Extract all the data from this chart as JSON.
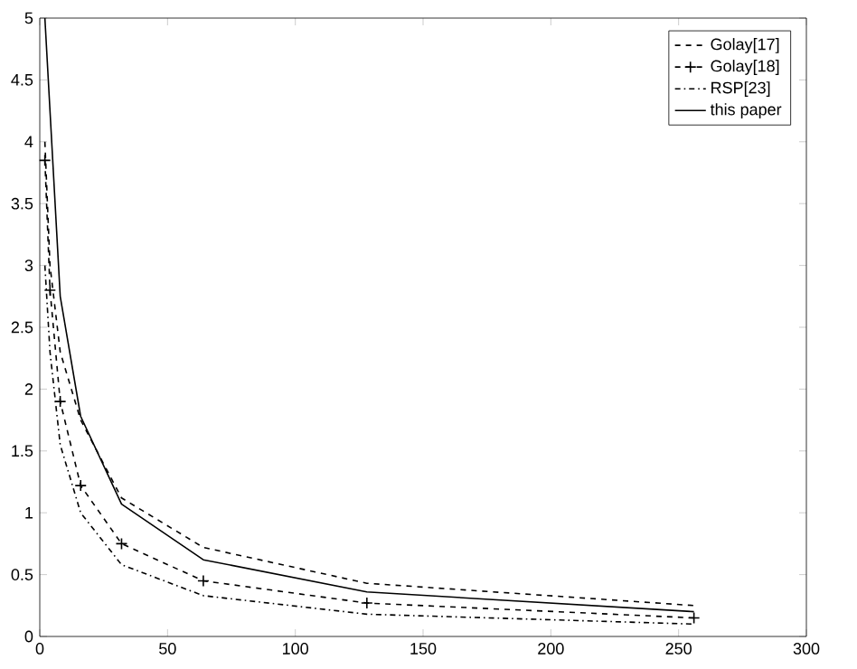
{
  "chart_data": {
    "type": "line",
    "xlim": [
      0,
      300
    ],
    "ylim": [
      0,
      5
    ],
    "xticks": [
      0,
      50,
      100,
      150,
      200,
      250,
      300
    ],
    "yticks": [
      0,
      0.5,
      1,
      1.5,
      2,
      2.5,
      3,
      3.5,
      4,
      4.5,
      5
    ],
    "legend": "top right",
    "grid": false,
    "series": [
      {
        "name": "Golay[17]",
        "color": "#000000",
        "line_style": "dashed",
        "marker": "none",
        "x": [
          2,
          4,
          8,
          16,
          32,
          64,
          128,
          256
        ],
        "values": [
          4.0,
          3.0,
          2.3,
          1.75,
          1.12,
          0.72,
          0.43,
          0.25
        ]
      },
      {
        "name": "Golay[18]",
        "color": "#000000",
        "line_style": "dashed",
        "marker": "cross",
        "x": [
          2,
          4,
          8,
          16,
          32,
          64,
          128,
          256
        ],
        "values": [
          3.85,
          2.8,
          1.9,
          1.22,
          0.75,
          0.45,
          0.27,
          0.15
        ]
      },
      {
        "name": "RSP[23]",
        "color": "#000000",
        "line_style": "dashdot",
        "marker": "none",
        "x": [
          2,
          4,
          8,
          16,
          32,
          64,
          128,
          256
        ],
        "values": [
          3.0,
          2.3,
          1.55,
          1.0,
          0.58,
          0.33,
          0.18,
          0.1
        ]
      },
      {
        "name": "this paper",
        "color": "#000000",
        "line_style": "solid",
        "marker": "none",
        "x": [
          2,
          8,
          16,
          32,
          64,
          128,
          256
        ],
        "values": [
          5.0,
          2.75,
          1.78,
          1.07,
          0.62,
          0.36,
          0.2
        ]
      }
    ]
  }
}
